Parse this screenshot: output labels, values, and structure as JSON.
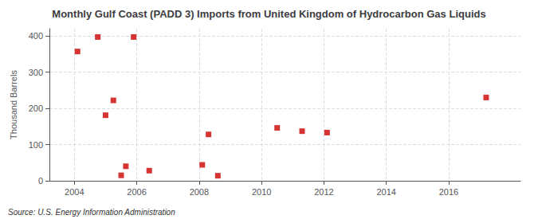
{
  "chart_data": {
    "type": "scatter",
    "title": "Monthly Gulf Coast (PADD 3) Imports from United Kingdom of Hydrocarbon Gas Liquids",
    "ylabel": "Thousand Barrels",
    "annotation": "Source: U.S. Energy Information Administration",
    "x": [
      2004.1,
      2004.75,
      2005.0,
      2005.25,
      2005.5,
      2005.65,
      2005.9,
      2006.4,
      2008.1,
      2008.3,
      2008.6,
      2010.5,
      2011.3,
      2012.1,
      2017.2
    ],
    "values": [
      357,
      397,
      181,
      222,
      15,
      40,
      397,
      28,
      44,
      128,
      14,
      146,
      137,
      133,
      230
    ],
    "color": "#cc0000",
    "marker": "square",
    "xlim": [
      2003.2,
      2018.3
    ],
    "xticks": [
      2004,
      2006,
      2008,
      2010,
      2012,
      2014,
      2016
    ],
    "ylim": [
      0,
      420
    ],
    "yticks": [
      0,
      100,
      200,
      300,
      400
    ],
    "grid": true
  }
}
